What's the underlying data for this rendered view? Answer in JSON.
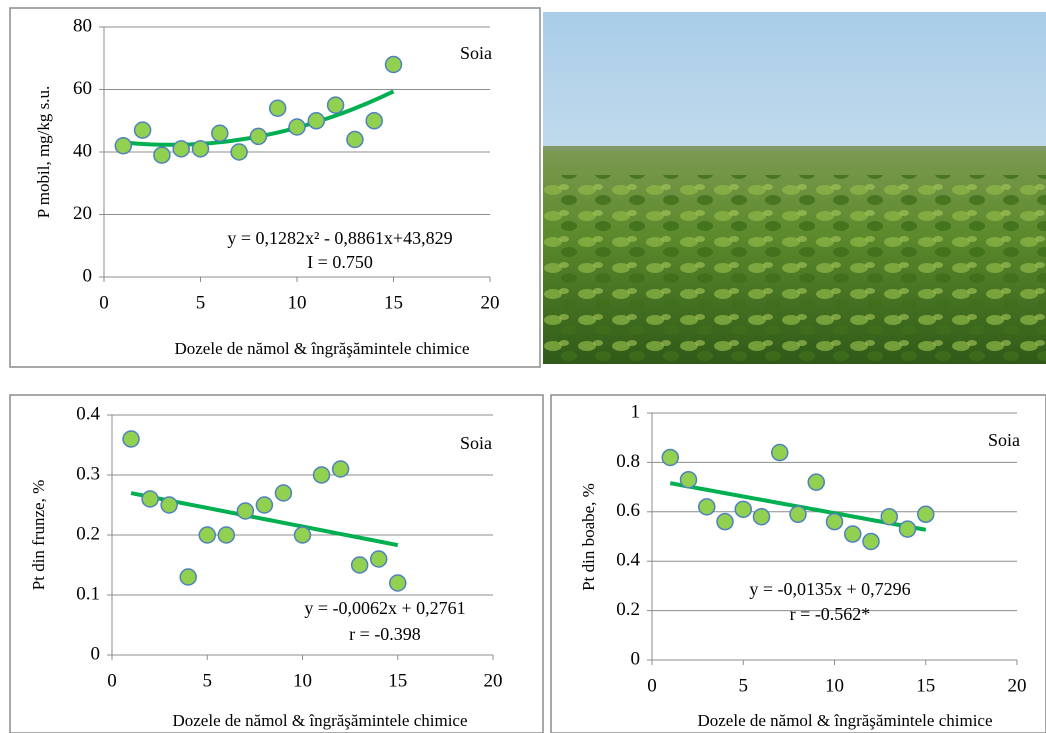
{
  "chart_data": [
    {
      "type": "scatter",
      "label": "Soia",
      "ylabel": "P mobil, mg/kg s.u.",
      "xlabel": "Dozele de nămol & îngrăşămintele chimice",
      "x": [
        1,
        2,
        3,
        4,
        5,
        6,
        7,
        8,
        9,
        10,
        11,
        12,
        13,
        14,
        15
      ],
      "values": [
        42,
        47,
        39,
        41,
        41,
        46,
        40,
        45,
        54,
        48,
        50,
        55,
        44,
        50,
        68
      ],
      "color": "#92d050",
      "edge": "#4f81bd",
      "trend_color": "#00b050",
      "trend": [
        0.1282,
        -0.8861,
        43.829
      ],
      "equation": "y = 0,1282x² - 0,8861x+43,829",
      "stat": "I = 0.750",
      "xlim": [
        0,
        20
      ],
      "ylim": [
        0,
        80
      ],
      "xticks": [
        0,
        5,
        10,
        15,
        20
      ],
      "yticks": [
        0,
        20,
        40,
        60,
        80
      ],
      "grid": true
    },
    {
      "type": "scatter",
      "label": "Soia",
      "ylabel": "Pt din frunze, %",
      "xlabel": "Dozele de nămol & îngrăşămintele chimice",
      "x": [
        1,
        2,
        3,
        4,
        5,
        6,
        7,
        8,
        9,
        10,
        11,
        12,
        13,
        14,
        15
      ],
      "values": [
        0.36,
        0.26,
        0.25,
        0.13,
        0.2,
        0.2,
        0.24,
        0.25,
        0.27,
        0.2,
        0.3,
        0.31,
        0.15,
        0.16,
        0.12
      ],
      "color": "#92d050",
      "edge": "#4f81bd",
      "trend_color": "#00b050",
      "trend": [
        -0.0062,
        0.2761
      ],
      "equation": "y = -0,0062x + 0,2761",
      "stat": "r = -0.398",
      "xlim": [
        0,
        20
      ],
      "ylim": [
        0,
        0.4
      ],
      "xticks": [
        0,
        5,
        10,
        15,
        20
      ],
      "yticks": [
        0,
        0.1,
        0.2,
        0.3,
        0.4
      ],
      "grid": true
    },
    {
      "type": "scatter",
      "label": "Soia",
      "ylabel": "Pt din boabe, %",
      "xlabel": "Dozele de nămol & îngrăşămintele chimice",
      "x": [
        1,
        2,
        3,
        4,
        5,
        6,
        7,
        8,
        9,
        10,
        11,
        12,
        13,
        14,
        15
      ],
      "values": [
        0.82,
        0.73,
        0.62,
        0.56,
        0.61,
        0.58,
        0.84,
        0.59,
        0.72,
        0.56,
        0.51,
        0.48,
        0.58,
        0.53,
        0.59
      ],
      "color": "#92d050",
      "edge": "#4f81bd",
      "trend_color": "#00b050",
      "trend": [
        -0.0135,
        0.7296
      ],
      "equation": "y = -0,0135x + 0,7296",
      "stat": "r = -0.562*",
      "xlim": [
        0,
        20
      ],
      "ylim": [
        0,
        1
      ],
      "xticks": [
        0,
        5,
        10,
        15,
        20
      ],
      "yticks": [
        0,
        0.2,
        0.4,
        0.6,
        0.8,
        1
      ],
      "grid": true
    }
  ]
}
